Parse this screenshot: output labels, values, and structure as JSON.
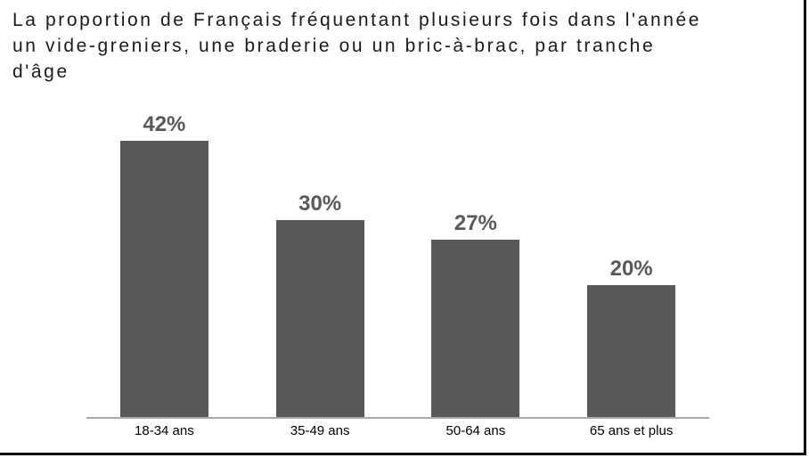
{
  "title": {
    "full": "La proportion de Français fréquentant plusieurs fois dans l'année un vide-greniers, une braderie ou un bric-à-brac, par tranche d'âge",
    "lines": [
      "La proportion de Français fréquentant plusieurs fois dans l'année",
      "un vide-greniers, une braderie ou un bric-à-brac, par tranche",
      "d'âge"
    ]
  },
  "chart_data": {
    "type": "bar",
    "title": "La proportion de Français fréquentant plusieurs fois dans l'année un vide-greniers, une braderie ou un bric-à-brac, par tranche d'âge",
    "categories": [
      "18-34 ans",
      "35-49 ans",
      "50-64 ans",
      "65 ans et plus"
    ],
    "values": [
      42,
      30,
      27,
      20
    ],
    "value_labels": [
      "42%",
      "30%",
      "27%",
      "20%"
    ],
    "unit": "%",
    "xlabel": "",
    "ylabel": "",
    "ylim": [
      0,
      45
    ],
    "grid": false,
    "legend": false,
    "bar_color": "#595959",
    "value_label_color": "#595959",
    "axis_color": "#a9a9a9",
    "category_label_color": "#000000"
  }
}
